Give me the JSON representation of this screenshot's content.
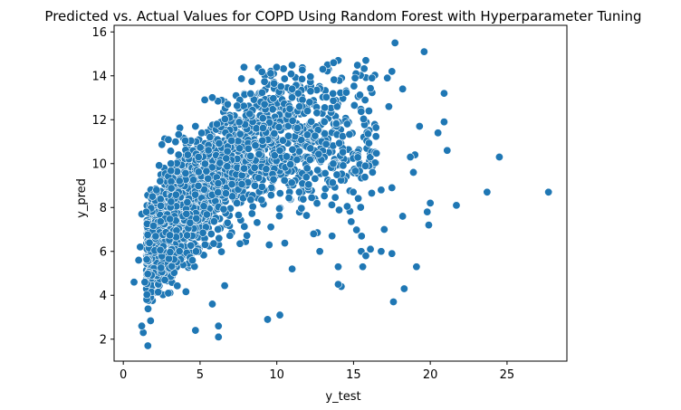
{
  "chart_data": {
    "type": "scatter",
    "title": "Predicted vs. Actual Values for COPD Using Random Forest with Hyperparameter Tuning",
    "xlabel": "y_test",
    "ylabel": "y_pred",
    "xlim": [
      -0.6,
      28.9
    ],
    "ylim": [
      1.0,
      16.3
    ],
    "xticks": [
      0,
      5,
      10,
      15,
      20,
      25
    ],
    "yticks": [
      2,
      4,
      6,
      8,
      10,
      12,
      14,
      16
    ],
    "grid": false,
    "legend": "none",
    "marker_color": "#1f77b4",
    "point_count": 2400,
    "points": [
      [
        17.7,
        15.5
      ],
      [
        19.6,
        15.1
      ],
      [
        14.0,
        14.7
      ],
      [
        15.8,
        14.7
      ],
      [
        13.3,
        14.5
      ],
      [
        13.7,
        14.6
      ],
      [
        15.1,
        13.9
      ],
      [
        16.2,
        13.9
      ],
      [
        17.2,
        13.9
      ],
      [
        18.2,
        13.4
      ],
      [
        17.5,
        14.2
      ],
      [
        13.0,
        14.3
      ],
      [
        12.2,
        13.3
      ],
      [
        11.0,
        13.4
      ],
      [
        20.9,
        13.2
      ],
      [
        12.0,
        12.4
      ],
      [
        16.0,
        12.4
      ],
      [
        17.3,
        12.6
      ],
      [
        20.9,
        11.9
      ],
      [
        19.3,
        11.7
      ],
      [
        20.5,
        11.4
      ],
      [
        21.1,
        10.6
      ],
      [
        6.8,
        12.7
      ],
      [
        6.1,
        11.8
      ],
      [
        4.7,
        11.7
      ],
      [
        9.2,
        12.7
      ],
      [
        24.5,
        10.3
      ],
      [
        19.0,
        10.4
      ],
      [
        18.7,
        10.3
      ],
      [
        18.9,
        9.6
      ],
      [
        23.7,
        8.7
      ],
      [
        27.7,
        8.7
      ],
      [
        21.7,
        8.1
      ],
      [
        20.0,
        8.2
      ],
      [
        19.8,
        7.8
      ],
      [
        19.9,
        7.2
      ],
      [
        18.2,
        7.6
      ],
      [
        16.8,
        8.8
      ],
      [
        17.5,
        8.9
      ],
      [
        17.0,
        7.0
      ],
      [
        16.1,
        6.1
      ],
      [
        15.5,
        6.0
      ],
      [
        15.8,
        5.8
      ],
      [
        16.8,
        6.0
      ],
      [
        17.5,
        5.9
      ],
      [
        19.1,
        5.3
      ],
      [
        15.6,
        5.3
      ],
      [
        14.2,
        4.4
      ],
      [
        14.0,
        4.5
      ],
      [
        18.3,
        4.3
      ],
      [
        17.6,
        3.7
      ],
      [
        12.4,
        6.8
      ],
      [
        13.6,
        6.7
      ],
      [
        14.0,
        5.3
      ],
      [
        12.8,
        6.0
      ],
      [
        11.0,
        5.2
      ],
      [
        10.2,
        3.1
      ],
      [
        9.4,
        2.9
      ],
      [
        6.2,
        2.1
      ],
      [
        6.2,
        2.6
      ],
      [
        5.8,
        3.6
      ],
      [
        4.7,
        2.4
      ],
      [
        1.6,
        1.7
      ],
      [
        1.3,
        2.3
      ],
      [
        1.2,
        2.6
      ],
      [
        0.7,
        4.6
      ],
      [
        1.0,
        5.6
      ],
      [
        1.2,
        7.7
      ],
      [
        1.9,
        8.5
      ],
      [
        2.4,
        9.2
      ],
      [
        3.1,
        10.0
      ],
      [
        3.6,
        10.4
      ],
      [
        4.2,
        10.4
      ],
      [
        4.9,
        10.3
      ],
      [
        1.5,
        7.8
      ],
      [
        1.1,
        6.2
      ],
      [
        1.4,
        4.6
      ]
    ]
  }
}
